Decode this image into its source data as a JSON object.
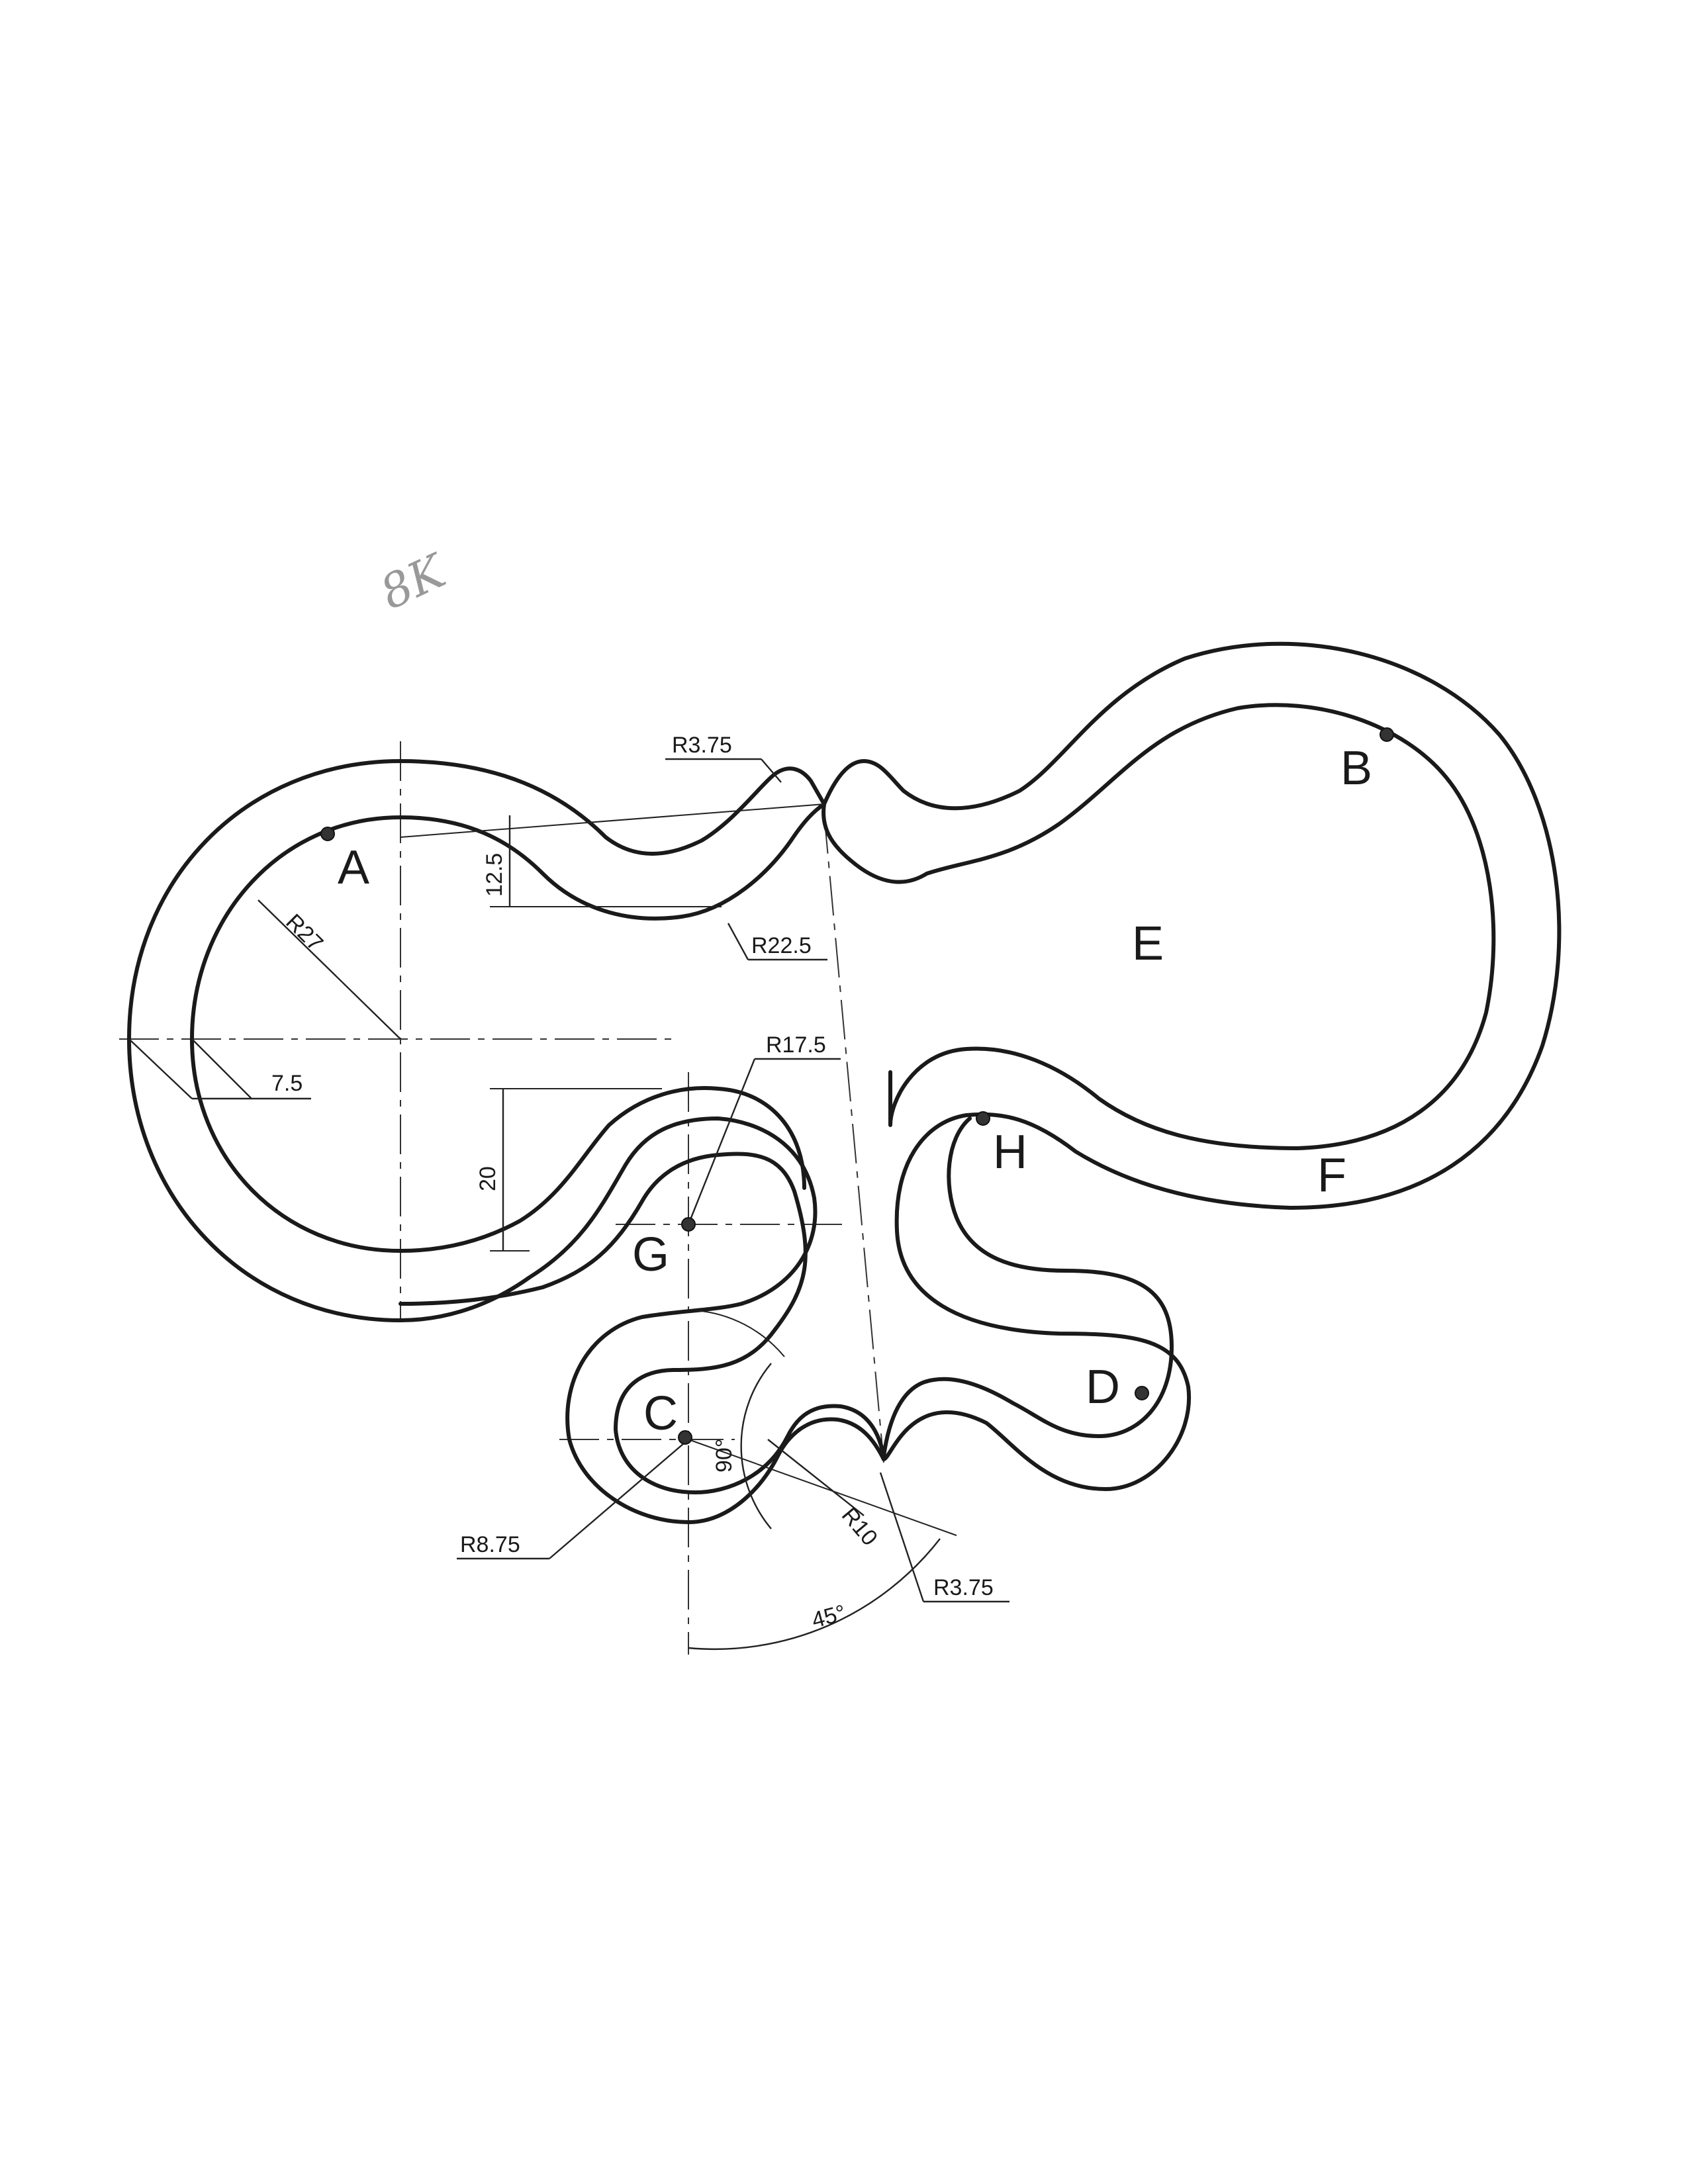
{
  "note": "8K",
  "points": {
    "A": "A",
    "B": "B",
    "C": "C",
    "D": "D",
    "E": "E",
    "F": "F",
    "G": "G",
    "H": "H"
  },
  "dimensions": {
    "r375_top": "R3.75",
    "r225": "R22.5",
    "h125": "12.5",
    "r27": "R27",
    "d75": "7.5",
    "r175": "R17.5",
    "h20": "20",
    "r875": "R8.75",
    "a90": "90°",
    "r10": "R10",
    "a45": "45°",
    "r375_bottom": "R3.75"
  }
}
